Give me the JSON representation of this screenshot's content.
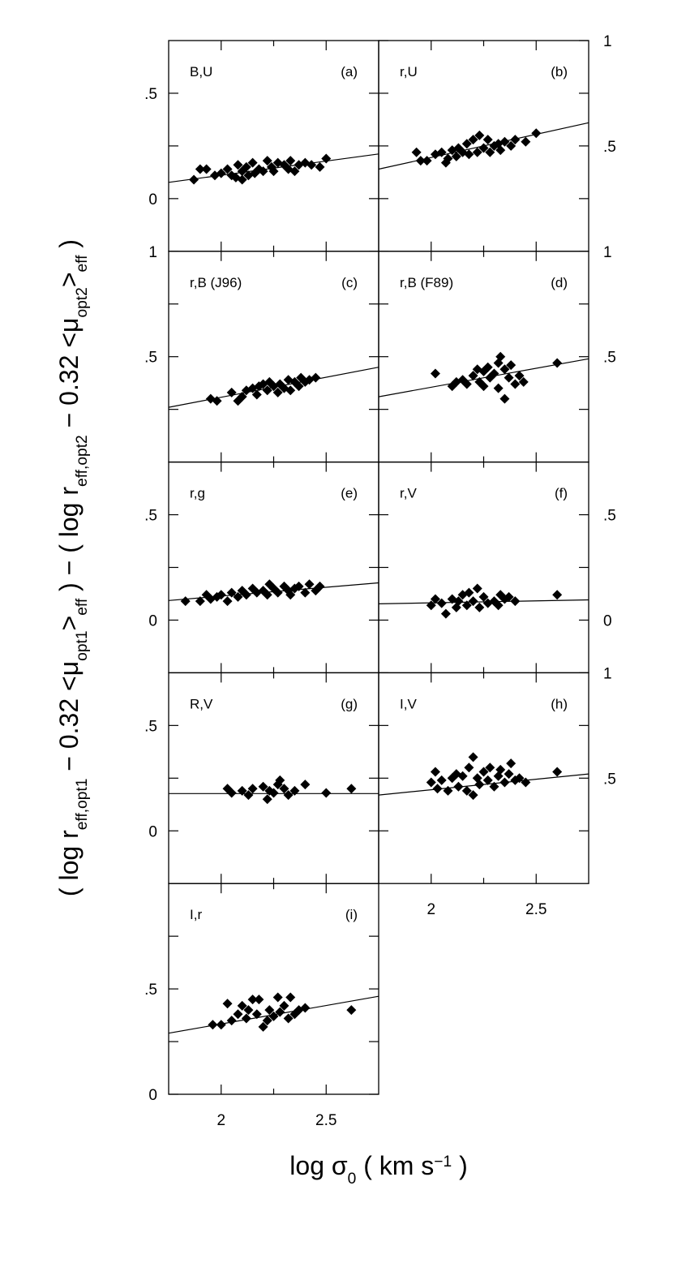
{
  "chart_data": {
    "type": "scatter",
    "xlabel": [
      {
        "text": "log σ"
      },
      {
        "text": "0",
        "sub": true
      },
      {
        "text": " ( km s"
      },
      {
        "text": "−1",
        "sup": true
      },
      {
        "text": " )"
      }
    ],
    "ylabel": [
      {
        "text": "( log r"
      },
      {
        "text": "eff,opt1",
        "sub": true
      },
      {
        "text": " − 0.32 <μ"
      },
      {
        "text": "opt1",
        "sub": true
      },
      {
        "text": ">"
      },
      {
        "text": "eff",
        "sub": true
      },
      {
        "text": " ) − ( log r"
      },
      {
        "text": "eff,opt2",
        "sub": true
      },
      {
        "text": " − 0.32 <μ"
      },
      {
        "text": "opt2",
        "sub": true
      },
      {
        "text": ">"
      },
      {
        "text": "eff",
        "sub": true
      },
      {
        "text": " )"
      }
    ],
    "color": "#000000",
    "panels": [
      {
        "name": "B,U",
        "tag": "(a)",
        "xlim": [
          1.75,
          2.75
        ],
        "xticks": [
          2,
          2.5
        ],
        "minor_xticks": [
          2.25
        ],
        "ylim": [
          -0.25,
          0.75
        ],
        "yticks": [
          {
            "value": 0.5,
            "label": ".5"
          },
          0
        ],
        "minor_yticks": [
          0.25
        ],
        "x": [
          1.87,
          1.9,
          1.93,
          1.97,
          2.0,
          2.03,
          2.05,
          2.07,
          2.08,
          2.1,
          2.1,
          2.12,
          2.13,
          2.15,
          2.16,
          2.18,
          2.2,
          2.22,
          2.24,
          2.25,
          2.27,
          2.3,
          2.32,
          2.33,
          2.35,
          2.37,
          2.4,
          2.43,
          2.47,
          2.5
        ],
        "values": [
          0.09,
          0.14,
          0.14,
          0.11,
          0.12,
          0.14,
          0.11,
          0.1,
          0.16,
          0.13,
          0.09,
          0.15,
          0.11,
          0.17,
          0.12,
          0.14,
          0.13,
          0.18,
          0.15,
          0.13,
          0.17,
          0.16,
          0.14,
          0.18,
          0.13,
          0.16,
          0.17,
          0.16,
          0.15,
          0.19
        ],
        "fit": {
          "x": [
            1.75,
            2.75
          ],
          "y": [
            0.077,
            0.212
          ]
        }
      },
      {
        "name": "r,U",
        "tag": "(b)",
        "xlim": [
          1.75,
          2.75
        ],
        "xticks": [
          2,
          2.5
        ],
        "minor_xticks": [
          2.25
        ],
        "ylim": [
          0,
          1
        ],
        "yticks": [
          1,
          {
            "value": 0.5,
            "label": ".5"
          }
        ],
        "minor_yticks": [
          0.25,
          0.75
        ],
        "x": [
          1.93,
          1.95,
          1.98,
          2.02,
          2.05,
          2.07,
          2.08,
          2.1,
          2.12,
          2.13,
          2.15,
          2.17,
          2.18,
          2.2,
          2.22,
          2.23,
          2.25,
          2.27,
          2.28,
          2.3,
          2.32,
          2.33,
          2.35,
          2.38,
          2.4,
          2.45,
          2.5
        ],
        "values": [
          0.47,
          0.43,
          0.43,
          0.46,
          0.47,
          0.42,
          0.44,
          0.48,
          0.45,
          0.49,
          0.47,
          0.51,
          0.46,
          0.53,
          0.47,
          0.55,
          0.49,
          0.53,
          0.47,
          0.5,
          0.51,
          0.48,
          0.52,
          0.5,
          0.53,
          0.52,
          0.56
        ],
        "fit": {
          "x": [
            1.75,
            2.75
          ],
          "y": [
            0.39,
            0.61
          ]
        }
      },
      {
        "name": "r,B (J96)",
        "tag": "(c)",
        "xlim": [
          1.75,
          2.75
        ],
        "xticks": [
          2,
          2.5
        ],
        "minor_xticks": [
          2.25
        ],
        "ylim": [
          0,
          1
        ],
        "yticks": [
          1,
          {
            "value": 0.5,
            "label": ".5"
          }
        ],
        "minor_yticks": [
          0.25,
          0.75
        ],
        "x": [
          1.95,
          1.98,
          2.05,
          2.08,
          2.1,
          2.12,
          2.15,
          2.17,
          2.18,
          2.2,
          2.22,
          2.23,
          2.25,
          2.27,
          2.28,
          2.3,
          2.32,
          2.33,
          2.35,
          2.37,
          2.38,
          2.4,
          2.42,
          2.45
        ],
        "values": [
          0.3,
          0.29,
          0.33,
          0.29,
          0.31,
          0.34,
          0.35,
          0.32,
          0.36,
          0.37,
          0.34,
          0.38,
          0.36,
          0.33,
          0.37,
          0.35,
          0.39,
          0.34,
          0.38,
          0.36,
          0.4,
          0.38,
          0.39,
          0.4
        ],
        "fit": {
          "x": [
            1.75,
            2.75
          ],
          "y": [
            0.26,
            0.45
          ]
        }
      },
      {
        "name": "r,B (F89)",
        "tag": "(d)",
        "xlim": [
          1.75,
          2.75
        ],
        "xticks": [
          2,
          2.5
        ],
        "minor_xticks": [
          2.25
        ],
        "ylim": [
          0,
          1
        ],
        "yticks": [
          1,
          {
            "value": 0.5,
            "label": ".5"
          }
        ],
        "minor_yticks": [
          0.25,
          0.75
        ],
        "x": [
          2.02,
          2.1,
          2.12,
          2.15,
          2.17,
          2.2,
          2.22,
          2.23,
          2.25,
          2.25,
          2.27,
          2.28,
          2.3,
          2.32,
          2.32,
          2.33,
          2.35,
          2.35,
          2.37,
          2.38,
          2.4,
          2.42,
          2.44,
          2.6
        ],
        "values": [
          0.42,
          0.36,
          0.38,
          0.39,
          0.37,
          0.41,
          0.44,
          0.38,
          0.43,
          0.36,
          0.45,
          0.4,
          0.42,
          0.47,
          0.35,
          0.5,
          0.44,
          0.3,
          0.4,
          0.46,
          0.37,
          0.41,
          0.38,
          0.47
        ],
        "fit": {
          "x": [
            1.75,
            2.75
          ],
          "y": [
            0.31,
            0.49
          ]
        }
      },
      {
        "name": "r,g",
        "tag": "(e)",
        "xlim": [
          1.75,
          2.75
        ],
        "xticks": [
          2,
          2.5
        ],
        "minor_xticks": [
          2.25
        ],
        "ylim": [
          -0.25,
          0.75
        ],
        "yticks": [
          {
            "value": 0.5,
            "label": ".5"
          },
          0
        ],
        "minor_yticks": [
          0.25
        ],
        "x": [
          1.83,
          1.9,
          1.93,
          1.95,
          1.98,
          2.0,
          2.03,
          2.05,
          2.08,
          2.1,
          2.12,
          2.15,
          2.17,
          2.2,
          2.22,
          2.23,
          2.25,
          2.27,
          2.3,
          2.32,
          2.33,
          2.35,
          2.37,
          2.4,
          2.42,
          2.45,
          2.47
        ],
        "values": [
          0.09,
          0.09,
          0.12,
          0.1,
          0.11,
          0.12,
          0.09,
          0.13,
          0.11,
          0.14,
          0.12,
          0.15,
          0.13,
          0.14,
          0.12,
          0.17,
          0.15,
          0.13,
          0.16,
          0.14,
          0.12,
          0.15,
          0.16,
          0.13,
          0.17,
          0.14,
          0.16
        ],
        "fit": {
          "x": [
            1.75,
            2.75
          ],
          "y": [
            0.093,
            0.177
          ]
        }
      },
      {
        "name": "r,V",
        "tag": "(f)",
        "xlim": [
          1.75,
          2.75
        ],
        "xticks": [
          2,
          2.5
        ],
        "minor_xticks": [
          2.25
        ],
        "ylim": [
          -0.25,
          0.75
        ],
        "yticks": [
          {
            "value": 0.5,
            "label": ".5"
          },
          0
        ],
        "minor_yticks": [
          0.25
        ],
        "x": [
          2.0,
          2.02,
          2.05,
          2.07,
          2.1,
          2.12,
          2.13,
          2.15,
          2.17,
          2.18,
          2.2,
          2.22,
          2.23,
          2.25,
          2.27,
          2.3,
          2.32,
          2.33,
          2.35,
          2.37,
          2.4,
          2.6
        ],
        "values": [
          0.07,
          0.1,
          0.08,
          0.03,
          0.1,
          0.06,
          0.09,
          0.12,
          0.07,
          0.13,
          0.09,
          0.15,
          0.06,
          0.11,
          0.08,
          0.09,
          0.07,
          0.12,
          0.1,
          0.11,
          0.09,
          0.12
        ],
        "fit": {
          "x": [
            1.75,
            2.75
          ],
          "y": [
            0.077,
            0.096
          ]
        }
      },
      {
        "name": "R,V",
        "tag": "(g)",
        "xlim": [
          1.75,
          2.75
        ],
        "xticks": [
          2,
          2.5
        ],
        "minor_xticks": [
          2.25
        ],
        "ylim": [
          -0.25,
          0.75
        ],
        "yticks": [
          {
            "value": 0.5,
            "label": ".5"
          },
          0
        ],
        "minor_yticks": [
          0.25
        ],
        "x": [
          2.03,
          2.05,
          2.1,
          2.13,
          2.15,
          2.2,
          2.22,
          2.23,
          2.25,
          2.27,
          2.28,
          2.3,
          2.32,
          2.35,
          2.4,
          2.5,
          2.62
        ],
        "values": [
          0.2,
          0.18,
          0.19,
          0.17,
          0.2,
          0.21,
          0.15,
          0.19,
          0.18,
          0.22,
          0.24,
          0.2,
          0.17,
          0.19,
          0.22,
          0.18,
          0.2
        ],
        "fit": {
          "x": [
            1.75,
            2.75
          ],
          "y": [
            0.177,
            0.177
          ]
        }
      },
      {
        "name": "I,V",
        "tag": "(h)",
        "xlim": [
          1.75,
          2.75
        ],
        "xticks": [
          2,
          2.5
        ],
        "minor_xticks": [
          2.25
        ],
        "ylim": [
          0,
          1
        ],
        "yticks": [
          1,
          {
            "value": 0.5,
            "label": ".5"
          }
        ],
        "minor_yticks": [
          0.25,
          0.75
        ],
        "x": [
          2.0,
          2.02,
          2.03,
          2.05,
          2.08,
          2.1,
          2.12,
          2.13,
          2.15,
          2.17,
          2.18,
          2.2,
          2.2,
          2.22,
          2.23,
          2.25,
          2.27,
          2.28,
          2.3,
          2.32,
          2.33,
          2.35,
          2.37,
          2.38,
          2.4,
          2.42,
          2.45,
          2.6
        ],
        "values": [
          0.48,
          0.53,
          0.45,
          0.49,
          0.44,
          0.5,
          0.52,
          0.46,
          0.51,
          0.44,
          0.55,
          0.6,
          0.42,
          0.5,
          0.47,
          0.53,
          0.49,
          0.55,
          0.46,
          0.51,
          0.54,
          0.48,
          0.52,
          0.57,
          0.49,
          0.5,
          0.48,
          0.53
        ],
        "fit": {
          "x": [
            1.75,
            2.75
          ],
          "y": [
            0.42,
            0.52
          ]
        }
      },
      {
        "name": "I,r",
        "tag": "(i)",
        "xlim": [
          1.75,
          2.75
        ],
        "xticks": [
          2,
          2.5
        ],
        "minor_xticks": [
          2.25
        ],
        "ylim": [
          0,
          1
        ],
        "yticks": [
          {
            "value": 0.5,
            "label": ".5"
          },
          0
        ],
        "minor_yticks": [
          0.25,
          0.75
        ],
        "x": [
          1.96,
          2.0,
          2.03,
          2.05,
          2.08,
          2.1,
          2.12,
          2.13,
          2.15,
          2.17,
          2.18,
          2.2,
          2.22,
          2.23,
          2.25,
          2.27,
          2.28,
          2.3,
          2.32,
          2.33,
          2.35,
          2.37,
          2.4,
          2.62
        ],
        "values": [
          0.33,
          0.33,
          0.43,
          0.35,
          0.38,
          0.42,
          0.36,
          0.4,
          0.45,
          0.38,
          0.45,
          0.32,
          0.35,
          0.4,
          0.37,
          0.46,
          0.39,
          0.42,
          0.36,
          0.46,
          0.38,
          0.4,
          0.41,
          0.4
        ],
        "fit": {
          "x": [
            1.75,
            2.75
          ],
          "y": [
            0.29,
            0.465
          ]
        }
      }
    ]
  }
}
